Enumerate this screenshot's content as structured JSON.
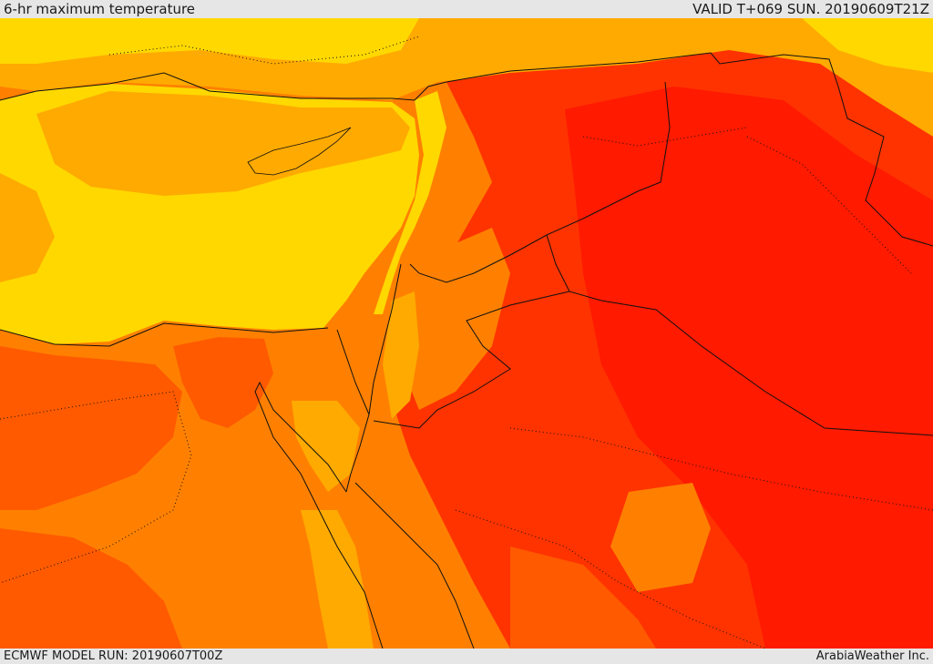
{
  "header": {
    "title": "6-hr maximum temperature",
    "valid": "VALID T+069 SUN. 20190609T21Z"
  },
  "footer": {
    "model_run": "ECMWF MODEL RUN: 20190607T00Z",
    "credit": "ArabiaWeather Inc."
  },
  "colors": {
    "yellow": "#ffd800",
    "light_orange": "#ffaa00",
    "orange": "#ff8000",
    "dark_orange": "#ff5a00",
    "red_orange": "#ff3300",
    "red": "#ff1a00",
    "border_line": "#111111"
  }
}
